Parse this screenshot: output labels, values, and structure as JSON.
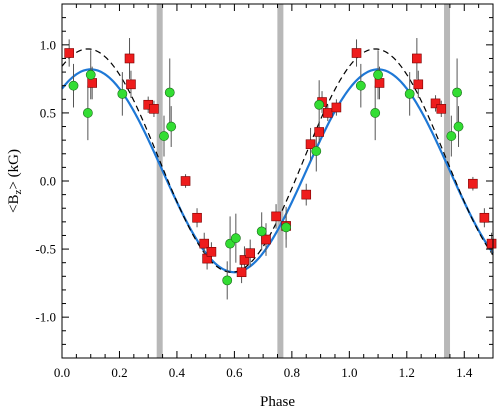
{
  "chart_data": {
    "type": "scatter",
    "title": "",
    "xlabel": "Phase",
    "ylabel": {
      "prefix": "<B",
      "sub": "z",
      "suffix": "> (kG)"
    },
    "xlim": [
      0.0,
      1.5
    ],
    "ylim": [
      -1.3,
      1.3
    ],
    "x_ticks": [
      0.0,
      0.2,
      0.4,
      0.6,
      0.8,
      1.0,
      1.2,
      1.4
    ],
    "x_tick_labels": [
      "0.0",
      "0.2",
      "0.4",
      "0.6",
      "0.8",
      "1.0",
      "1.2",
      "1.4"
    ],
    "y_ticks": [
      1.0,
      0.5,
      0.0,
      -0.5,
      -1.0
    ],
    "y_tick_labels": [
      "1.0",
      "0.5",
      "0.0",
      "-0.5",
      "-1.0"
    ],
    "grid": false,
    "legend": "none",
    "vertical_bands": [
      0.34,
      0.76,
      1.34
    ],
    "colors": {
      "red_series": "#ee1c1c",
      "green_series": "#33dd33",
      "solid_curve": "#1e78d6",
      "dashed_curve": "#000000",
      "bands": "#b8b8b8",
      "error_bars": "#555555"
    },
    "fits": [
      {
        "style": "solid",
        "mean": 0.075,
        "amplitude": 0.745,
        "phase_of_max": 0.1
      },
      {
        "style": "dashed",
        "mean": 0.15,
        "amplitude": 0.82,
        "phase_of_max": 0.09
      }
    ],
    "series": [
      {
        "marker": "square",
        "points": [
          {
            "x": 0.025,
            "y": 0.94,
            "err": 0.1
          },
          {
            "x": 0.105,
            "y": 0.72,
            "err": 0.12
          },
          {
            "x": 0.235,
            "y": 0.9,
            "err": 0.15
          },
          {
            "x": 0.24,
            "y": 0.71,
            "err": 0.1
          },
          {
            "x": 0.3,
            "y": 0.56,
            "err": 0.06
          },
          {
            "x": 0.32,
            "y": 0.53,
            "err": 0.06
          },
          {
            "x": 0.43,
            "y": 0.0,
            "err": 0.05
          },
          {
            "x": 0.47,
            "y": -0.27,
            "err": 0.07
          },
          {
            "x": 0.495,
            "y": -0.46,
            "err": 0.08
          },
          {
            "x": 0.505,
            "y": -0.57,
            "err": 0.08
          },
          {
            "x": 0.52,
            "y": -0.52,
            "err": 0.07
          },
          {
            "x": 0.625,
            "y": -0.67,
            "err": 0.08
          },
          {
            "x": 0.635,
            "y": -0.58,
            "err": 0.1
          },
          {
            "x": 0.655,
            "y": -0.53,
            "err": 0.1
          },
          {
            "x": 0.71,
            "y": -0.43,
            "err": 0.12
          },
          {
            "x": 0.745,
            "y": -0.26,
            "err": 0.09
          },
          {
            "x": 0.78,
            "y": -0.33,
            "err": 0.1
          },
          {
            "x": 0.85,
            "y": -0.1,
            "err": 0.08
          },
          {
            "x": 0.865,
            "y": 0.27,
            "err": 0.12
          },
          {
            "x": 0.895,
            "y": 0.36,
            "err": 0.08
          },
          {
            "x": 0.905,
            "y": 0.58,
            "err": 0.08
          },
          {
            "x": 0.925,
            "y": 0.5,
            "err": 0.06
          },
          {
            "x": 0.955,
            "y": 0.54,
            "err": 0.06
          },
          {
            "x": 1.025,
            "y": 0.94,
            "err": 0.1
          },
          {
            "x": 1.105,
            "y": 0.72,
            "err": 0.12
          },
          {
            "x": 1.235,
            "y": 0.9,
            "err": 0.15
          },
          {
            "x": 1.24,
            "y": 0.71,
            "err": 0.1
          },
          {
            "x": 1.3,
            "y": 0.57,
            "err": 0.06
          },
          {
            "x": 1.32,
            "y": 0.53,
            "err": 0.06
          },
          {
            "x": 1.43,
            "y": -0.02,
            "err": 0.05
          },
          {
            "x": 1.47,
            "y": -0.27,
            "err": 0.07
          },
          {
            "x": 1.495,
            "y": -0.46,
            "err": 0.08
          }
        ]
      },
      {
        "marker": "circle",
        "points": [
          {
            "x": 0.04,
            "y": 0.7,
            "err": 0.16
          },
          {
            "x": 0.09,
            "y": 0.5,
            "err": 0.2
          },
          {
            "x": 0.1,
            "y": 0.78,
            "err": 0.18
          },
          {
            "x": 0.21,
            "y": 0.64,
            "err": 0.16
          },
          {
            "x": 0.355,
            "y": 0.33,
            "err": 0.15
          },
          {
            "x": 0.375,
            "y": 0.65,
            "err": 0.25
          },
          {
            "x": 0.38,
            "y": 0.4,
            "err": 0.15
          },
          {
            "x": 0.575,
            "y": -0.73,
            "err": 0.14
          },
          {
            "x": 0.585,
            "y": -0.46,
            "err": 0.2
          },
          {
            "x": 0.605,
            "y": -0.42,
            "err": 0.18
          },
          {
            "x": 0.695,
            "y": -0.37,
            "err": 0.14
          },
          {
            "x": 0.78,
            "y": -0.34,
            "err": 0.15
          },
          {
            "x": 0.885,
            "y": 0.22,
            "err": 0.15
          },
          {
            "x": 0.895,
            "y": 0.56,
            "err": 0.18
          },
          {
            "x": 1.04,
            "y": 0.7,
            "err": 0.16
          },
          {
            "x": 1.09,
            "y": 0.5,
            "err": 0.2
          },
          {
            "x": 1.1,
            "y": 0.78,
            "err": 0.18
          },
          {
            "x": 1.21,
            "y": 0.64,
            "err": 0.16
          },
          {
            "x": 1.355,
            "y": 0.33,
            "err": 0.15
          },
          {
            "x": 1.375,
            "y": 0.65,
            "err": 0.25
          },
          {
            "x": 1.38,
            "y": 0.4,
            "err": 0.15
          }
        ]
      }
    ]
  }
}
